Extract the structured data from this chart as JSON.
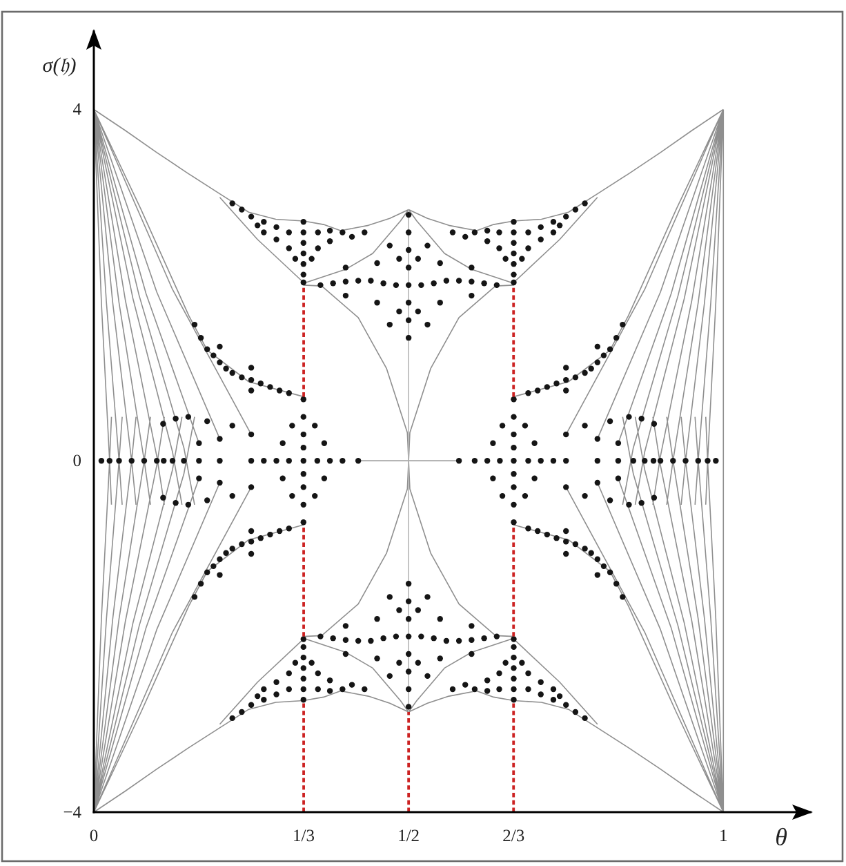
{
  "chart_data": {
    "type": "scatter",
    "xlabel": "θ",
    "ylabel": "σ(𝔥)",
    "xlim": [
      0,
      1.14
    ],
    "ylim": [
      -4,
      4.9
    ],
    "xticks": [
      0,
      {
        "value": 0.3333,
        "label": "1/3"
      },
      {
        "value": 0.5,
        "label": "1/2"
      },
      {
        "value": 0.6667,
        "label": "2/3"
      },
      1
    ],
    "yticks": [
      {
        "value": -4,
        "label": "−4"
      },
      0,
      4
    ],
    "series": [
      {
        "type": "line",
        "color": "#8f8f8f",
        "x": [
          0,
          0.05,
          0.1,
          0.15,
          0.2,
          0.246,
          0.289,
          0.333,
          0.365,
          0.392,
          0.436,
          0.47,
          0.5,
          null,
          0,
          0.075,
          0.151,
          0.18,
          0.246,
          0.333,
          null,
          0.2,
          0.26,
          0.333,
          null,
          0.333,
          0.362,
          0.42,
          0.465,
          0.498,
          0.5,
          null,
          0.333,
          0.4,
          0.443,
          0.487,
          0.5,
          null,
          0,
          0.125,
          0.25,
          null,
          0,
          0.1,
          0.2,
          null,
          0,
          0.083,
          0.167,
          null,
          0,
          0.072,
          0.143,
          0.16,
          null,
          0,
          0.062,
          0.125,
          0.14,
          null,
          0,
          0.05,
          0.1,
          0.112,
          null,
          0,
          0.04,
          0.08,
          0.09,
          null,
          0,
          0.03,
          0.06,
          0.067,
          null,
          0,
          0.02,
          0.04,
          0.045,
          null,
          0,
          0.012,
          0.025,
          0.028,
          null,
          1,
          0.95,
          0.9,
          0.85,
          0.8,
          0.754,
          0.711,
          0.667,
          0.635,
          0.608,
          0.564,
          0.53,
          0.5,
          null,
          1,
          0.925,
          0.849,
          0.82,
          0.754,
          0.667,
          null,
          0.8,
          0.74,
          0.667,
          null,
          0.667,
          0.638,
          0.58,
          0.535,
          0.502,
          0.5,
          null,
          0.667,
          0.6,
          0.557,
          0.513,
          0.5,
          null,
          1,
          0.875,
          0.75,
          null,
          1,
          0.9,
          0.8,
          null,
          1,
          0.917,
          0.833,
          null,
          1,
          0.928,
          0.857,
          0.84,
          null,
          1,
          0.938,
          0.875,
          0.86,
          null,
          1,
          0.95,
          0.9,
          0.888,
          null,
          1,
          0.96,
          0.92,
          0.91,
          null,
          1,
          0.97,
          0.94,
          0.933,
          null,
          1,
          0.98,
          0.96,
          0.955,
          null,
          1,
          0.988,
          0.975,
          0.972,
          null,
          0,
          0.05,
          0.1,
          0.15,
          0.2,
          0.246,
          0.289,
          0.333,
          0.365,
          0.392,
          0.436,
          0.47,
          0.5,
          null,
          0,
          0.075,
          0.151,
          0.18,
          0.246,
          0.333,
          null,
          0.2,
          0.26,
          0.333,
          null,
          0.333,
          0.362,
          0.42,
          0.465,
          0.498,
          0.5,
          null,
          0.333,
          0.4,
          0.443,
          0.487,
          0.5,
          null,
          0,
          0.125,
          0.25,
          null,
          0,
          0.1,
          0.2,
          null,
          0,
          0.083,
          0.167,
          null,
          0,
          0.072,
          0.143,
          0.16,
          null,
          0,
          0.062,
          0.125,
          0.14,
          null,
          0,
          0.05,
          0.1,
          0.112,
          null,
          0,
          0.04,
          0.08,
          0.09,
          null,
          0,
          0.03,
          0.06,
          0.067,
          null,
          0,
          0.02,
          0.04,
          0.045,
          null,
          0,
          0.012,
          0.025,
          0.028,
          null,
          1,
          0.95,
          0.9,
          0.85,
          0.8,
          0.754,
          0.711,
          0.667,
          0.635,
          0.608,
          0.564,
          0.53,
          0.5,
          null,
          1,
          0.925,
          0.849,
          0.82,
          0.754,
          0.667,
          null,
          0.8,
          0.74,
          0.667,
          null,
          0.667,
          0.638,
          0.58,
          0.535,
          0.502,
          0.5,
          null,
          0.667,
          0.6,
          0.557,
          0.513,
          0.5,
          null,
          1,
          0.875,
          0.75,
          null,
          1,
          0.9,
          0.8,
          null,
          1,
          0.917,
          0.833,
          null,
          1,
          0.928,
          0.857,
          0.84,
          null,
          1,
          0.938,
          0.875,
          0.86,
          null,
          1,
          0.95,
          0.9,
          0.888,
          null,
          1,
          0.96,
          0.92,
          0.91,
          null,
          1,
          0.97,
          0.94,
          0.933,
          null,
          1,
          0.98,
          0.96,
          0.955,
          null,
          1,
          0.988,
          0.975,
          0.972,
          null,
          0.42,
          0.58,
          null,
          1,
          1
        ],
        "values": [
          4,
          3.76,
          3.51,
          3.27,
          3.04,
          2.83,
          2.75,
          2.73,
          2.69,
          2.62,
          2.68,
          2.76,
          2.86,
          null,
          4,
          2.86,
          1.65,
          1.26,
          0.9,
          0.73,
          null,
          3.0,
          2.52,
          2.03,
          null,
          2.0,
          1.99,
          1.63,
          1.05,
          0.32,
          0,
          null,
          2.02,
          2.18,
          2.36,
          2.73,
          2.86,
          null,
          4,
          1.95,
          0.3,
          null,
          4,
          1.92,
          0.25,
          null,
          4,
          1.9,
          0.2,
          null,
          4,
          1.88,
          0.15,
          -0.5,
          null,
          4,
          1.85,
          0.1,
          -0.5,
          null,
          4,
          1.83,
          0.05,
          -0.5,
          null,
          4,
          1.8,
          0,
          -0.5,
          null,
          4,
          1.8,
          0,
          -0.5,
          null,
          4,
          1.8,
          0,
          -0.5,
          null,
          4,
          1.8,
          0,
          -0.5,
          null,
          4,
          3.76,
          3.51,
          3.27,
          3.04,
          2.83,
          2.75,
          2.73,
          2.69,
          2.62,
          2.68,
          2.76,
          2.86,
          null,
          4,
          2.86,
          1.65,
          1.26,
          0.9,
          0.73,
          null,
          3.0,
          2.52,
          2.03,
          null,
          2.0,
          1.99,
          1.63,
          1.05,
          0.32,
          0,
          null,
          2.02,
          2.18,
          2.36,
          2.73,
          2.86,
          null,
          4,
          1.95,
          0.3,
          null,
          4,
          1.92,
          0.25,
          null,
          4,
          1.9,
          0.2,
          null,
          4,
          1.88,
          0.15,
          -0.5,
          null,
          4,
          1.85,
          0.1,
          -0.5,
          null,
          4,
          1.83,
          0.05,
          -0.5,
          null,
          4,
          1.8,
          0,
          -0.5,
          null,
          4,
          1.8,
          0,
          -0.5,
          null,
          4,
          1.8,
          0,
          -0.5,
          null,
          4,
          1.8,
          0,
          -0.5,
          null,
          -4,
          -3.76,
          -3.51,
          -3.27,
          -3.04,
          -2.83,
          -2.75,
          -2.73,
          -2.69,
          -2.62,
          -2.68,
          -2.76,
          -2.86,
          null,
          -4,
          -2.86,
          -1.65,
          -1.26,
          -0.9,
          -0.73,
          null,
          -3.0,
          -2.52,
          -2.03,
          null,
          -2.0,
          -1.99,
          -1.63,
          -1.05,
          -0.32,
          0,
          null,
          -2.02,
          -2.18,
          -2.36,
          -2.73,
          -2.86,
          null,
          -4,
          -1.95,
          -0.3,
          null,
          -4,
          -1.92,
          -0.25,
          null,
          -4,
          -1.9,
          -0.2,
          null,
          -4,
          -1.88,
          -0.15,
          0.5,
          null,
          -4,
          -1.85,
          -0.1,
          0.5,
          null,
          -4,
          -1.83,
          -0.05,
          0.5,
          null,
          -4,
          -1.8,
          0,
          0.5,
          null,
          -4,
          -1.8,
          0,
          0.5,
          null,
          -4,
          -1.8,
          0,
          0.5,
          null,
          -4,
          -1.8,
          0,
          0.5,
          null,
          -4,
          -3.76,
          -3.51,
          -3.27,
          -3.04,
          -2.83,
          -2.75,
          -2.73,
          -2.69,
          -2.62,
          -2.68,
          -2.76,
          -2.86,
          null,
          -4,
          -2.86,
          -1.65,
          -1.26,
          -0.9,
          -0.73,
          null,
          -3.0,
          -2.52,
          -2.03,
          null,
          -2.0,
          -1.99,
          -1.63,
          -1.05,
          -0.32,
          0,
          null,
          -2.02,
          -2.18,
          -2.36,
          -2.73,
          -2.86,
          null,
          -4,
          -1.95,
          -0.3,
          null,
          -4,
          -1.92,
          -0.25,
          null,
          -4,
          -1.9,
          -0.2,
          null,
          -4,
          -1.88,
          -0.15,
          0.5,
          null,
          -4,
          -1.85,
          -0.1,
          0.5,
          null,
          -4,
          -1.83,
          -0.05,
          0.5,
          null,
          -4,
          -1.8,
          0,
          0.5,
          null,
          -4,
          -1.8,
          0,
          0.5,
          null,
          -4,
          -1.8,
          0,
          0.5,
          null,
          -4,
          -1.8,
          0,
          0.5,
          null,
          0,
          0,
          null,
          -4,
          4
        ]
      },
      {
        "type": "line",
        "color": "#b5b5b5",
        "x": [
          0.5,
          0.5
        ],
        "values": [
          -2.86,
          2.86
        ]
      },
      {
        "marker": "circle",
        "color": "#151515",
        "x": [
          0.333,
          0.333,
          0.333,
          0.333,
          0.333,
          0.333,
          0.333,
          0.31,
          0.29,
          0.27,
          0.25,
          0.235,
          0.22,
          0.31,
          0.29,
          0.27,
          0.26,
          0.356,
          0.375,
          0.395,
          0.43,
          0.356,
          0.375,
          0.41,
          0.32,
          0.346,
          0.16,
          0.17,
          0.18,
          0.19,
          0.2,
          0.2,
          0.21,
          0.22,
          0.235,
          0.25,
          0.25,
          0.25,
          0.265,
          0.28,
          0.295,
          0.31,
          0.22,
          0.18,
          0.15,
          0.13,
          0.11
        ],
        "values": [
          2.72,
          2.6,
          2.48,
          2.36,
          2.24,
          2.12,
          2.03,
          2.6,
          2.66,
          2.72,
          2.78,
          2.86,
          2.93,
          2.42,
          2.52,
          2.6,
          2.68,
          2.6,
          2.62,
          2.6,
          2.6,
          2.42,
          2.5,
          2.55,
          2.3,
          2.3,
          1.55,
          1.4,
          1.27,
          1.2,
          1.12,
          1.3,
          1.05,
          1.0,
          0.95,
          0.92,
          1.06,
          0.8,
          0.88,
          0.84,
          0.8,
          0.77,
          0.4,
          0.45,
          0.5,
          0.48,
          0.42
        ]
      },
      {
        "marker": "circle",
        "color": "#151515",
        "x": [
          0.667,
          0.667,
          0.667,
          0.667,
          0.667,
          0.667,
          0.667,
          0.69,
          0.71,
          0.73,
          0.75,
          0.765,
          0.78,
          0.69,
          0.71,
          0.73,
          0.74,
          0.644,
          0.625,
          0.605,
          0.57,
          0.644,
          0.625,
          0.59,
          0.68,
          0.654,
          0.84,
          0.83,
          0.82,
          0.81,
          0.8,
          0.8,
          0.79,
          0.78,
          0.765,
          0.75,
          0.75,
          0.75,
          0.735,
          0.72,
          0.705,
          0.69,
          0.78,
          0.82,
          0.85,
          0.87,
          0.89
        ],
        "values": [
          2.72,
          2.6,
          2.48,
          2.36,
          2.24,
          2.12,
          2.03,
          2.6,
          2.66,
          2.72,
          2.78,
          2.86,
          2.93,
          2.42,
          2.52,
          2.6,
          2.68,
          2.6,
          2.62,
          2.6,
          2.6,
          2.42,
          2.5,
          2.55,
          2.3,
          2.3,
          1.55,
          1.4,
          1.27,
          1.2,
          1.12,
          1.3,
          1.05,
          1.0,
          0.95,
          0.92,
          1.06,
          0.8,
          0.88,
          0.84,
          0.8,
          0.77,
          0.4,
          0.45,
          0.5,
          0.48,
          0.42
        ]
      },
      {
        "marker": "circle",
        "color": "#151515",
        "x": [
          0.333,
          0.333,
          0.333,
          0.333,
          0.333,
          0.333,
          0.333,
          0.31,
          0.29,
          0.27,
          0.25,
          0.235,
          0.22,
          0.31,
          0.29,
          0.27,
          0.26,
          0.356,
          0.375,
          0.395,
          0.43,
          0.356,
          0.375,
          0.41,
          0.32,
          0.346,
          0.16,
          0.17,
          0.18,
          0.19,
          0.2,
          0.2,
          0.21,
          0.22,
          0.235,
          0.25,
          0.25,
          0.25,
          0.265,
          0.28,
          0.295,
          0.31,
          0.22,
          0.18,
          0.15,
          0.13,
          0.11
        ],
        "values": [
          -2.72,
          -2.6,
          -2.48,
          -2.36,
          -2.24,
          -2.12,
          -2.03,
          -2.6,
          -2.66,
          -2.72,
          -2.78,
          -2.86,
          -2.93,
          -2.42,
          -2.52,
          -2.6,
          -2.68,
          -2.6,
          -2.62,
          -2.6,
          -2.6,
          -2.42,
          -2.5,
          -2.55,
          -2.3,
          -2.3,
          -1.55,
          -1.4,
          -1.27,
          -1.2,
          -1.12,
          -1.3,
          -1.05,
          -1.0,
          -0.95,
          -0.92,
          -1.06,
          -0.8,
          -0.88,
          -0.84,
          -0.8,
          -0.77,
          -0.4,
          -0.45,
          -0.5,
          -0.48,
          -0.42
        ]
      },
      {
        "marker": "circle",
        "color": "#151515",
        "x": [
          0.667,
          0.667,
          0.667,
          0.667,
          0.667,
          0.667,
          0.667,
          0.69,
          0.71,
          0.73,
          0.75,
          0.765,
          0.78,
          0.69,
          0.71,
          0.73,
          0.74,
          0.644,
          0.625,
          0.605,
          0.57,
          0.644,
          0.625,
          0.59,
          0.68,
          0.654,
          0.84,
          0.83,
          0.82,
          0.81,
          0.8,
          0.8,
          0.79,
          0.78,
          0.765,
          0.75,
          0.75,
          0.75,
          0.735,
          0.72,
          0.705,
          0.69,
          0.78,
          0.82,
          0.85,
          0.87,
          0.89
        ],
        "values": [
          -2.72,
          -2.6,
          -2.48,
          -2.36,
          -2.24,
          -2.12,
          -2.03,
          -2.6,
          -2.66,
          -2.72,
          -2.78,
          -2.86,
          -2.93,
          -2.42,
          -2.52,
          -2.6,
          -2.68,
          -2.6,
          -2.62,
          -2.6,
          -2.6,
          -2.42,
          -2.5,
          -2.55,
          -2.3,
          -2.3,
          -1.55,
          -1.4,
          -1.27,
          -1.2,
          -1.12,
          -1.3,
          -1.05,
          -1.0,
          -0.95,
          -0.92,
          -1.06,
          -0.8,
          -0.88,
          -0.84,
          -0.8,
          -0.77,
          -0.4,
          -0.45,
          -0.5,
          -0.48,
          -0.42
        ]
      },
      {
        "marker": "circle",
        "color": "#151515",
        "x": [
          0.5,
          0.5,
          0.5,
          0.5,
          0.5,
          0.5,
          0.5,
          0.5,
          0.48,
          0.46,
          0.44,
          0.42,
          0.4,
          0.38,
          0.36,
          0.52,
          0.54,
          0.56,
          0.58,
          0.6,
          0.62,
          0.64,
          0.485,
          0.47,
          0.485,
          0.47,
          0.45,
          0.45,
          0.4,
          0.4,
          0.515,
          0.53,
          0.515,
          0.53,
          0.55,
          0.55,
          0.6,
          0.6,
          0.5,
          0.5,
          0.5,
          0.5,
          0.5,
          0.5,
          0.5,
          0.5,
          0.48,
          0.46,
          0.44,
          0.42,
          0.4,
          0.38,
          0.36,
          0.52,
          0.54,
          0.56,
          0.58,
          0.6,
          0.62,
          0.64,
          0.485,
          0.47,
          0.485,
          0.47,
          0.45,
          0.45,
          0.4,
          0.4,
          0.515,
          0.53,
          0.515,
          0.53,
          0.55,
          0.55,
          0.6,
          0.6
        ],
        "values": [
          2.8,
          2.6,
          2.4,
          2.2,
          2.0,
          1.8,
          1.6,
          1.4,
          2.0,
          2.02,
          2.05,
          2.05,
          2.04,
          2.02,
          2.0,
          2.0,
          2.02,
          2.05,
          2.05,
          2.04,
          2.02,
          2.0,
          2.3,
          2.45,
          1.7,
          1.55,
          2.25,
          1.8,
          2.2,
          1.88,
          2.3,
          2.45,
          1.7,
          1.55,
          2.25,
          1.8,
          2.2,
          1.88,
          -2.8,
          -2.6,
          -2.4,
          -2.2,
          -2.0,
          -1.8,
          -1.6,
          -1.4,
          -2.0,
          -2.02,
          -2.05,
          -2.05,
          -2.04,
          -2.02,
          -2.0,
          -2.0,
          -2.02,
          -2.05,
          -2.05,
          -2.04,
          -2.02,
          -2.0,
          -2.3,
          -2.45,
          -1.7,
          -1.55,
          -2.25,
          -1.8,
          -2.2,
          -1.88,
          -2.3,
          -2.45,
          -1.7,
          -1.55,
          -2.25,
          -1.8,
          -2.2,
          -1.88
        ]
      },
      {
        "marker": "circle",
        "color": "#151515",
        "x": [
          0.333,
          0.333,
          0.333,
          0.333,
          0.333,
          0.333,
          0.333,
          0.333,
          0.333,
          0.27,
          0.29,
          0.31,
          0.355,
          0.375,
          0.395,
          0.42,
          0.3,
          0.3,
          0.366,
          0.366,
          0.315,
          0.315,
          0.351,
          0.351,
          0.25,
          0.25,
          0.25,
          0.2,
          0.2,
          0.2,
          0.167,
          0.167,
          0.167,
          0.143,
          0.125,
          0.111,
          0.1,
          0.08,
          0.06,
          0.04,
          0.025,
          0.012,
          0.667,
          0.667,
          0.667,
          0.667,
          0.667,
          0.667,
          0.667,
          0.667,
          0.667,
          0.73,
          0.71,
          0.69,
          0.645,
          0.625,
          0.605,
          0.58,
          0.7,
          0.7,
          0.634,
          0.634,
          0.685,
          0.685,
          0.649,
          0.649,
          0.75,
          0.75,
          0.75,
          0.8,
          0.8,
          0.8,
          0.833,
          0.833,
          0.833,
          0.857,
          0.875,
          0.889,
          0.9,
          0.92,
          0.94,
          0.96,
          0.975,
          0.988
        ],
        "values": [
          0.7,
          0.5,
          0.3,
          0.15,
          0,
          -0.15,
          -0.3,
          -0.5,
          -0.7,
          0,
          0,
          0,
          0,
          0,
          0,
          0,
          0.2,
          -0.2,
          0.2,
          -0.2,
          0.4,
          -0.4,
          0.4,
          -0.4,
          0,
          0.3,
          -0.3,
          0,
          0.25,
          -0.25,
          0,
          0.2,
          -0.2,
          0,
          0,
          0,
          0,
          0,
          0,
          0,
          0,
          0,
          0.7,
          0.5,
          0.3,
          0.15,
          0,
          -0.15,
          -0.3,
          -0.5,
          -0.7,
          0,
          0,
          0,
          0,
          0,
          0,
          0,
          0.2,
          -0.2,
          0.2,
          -0.2,
          0.4,
          -0.4,
          0.4,
          -0.4,
          0,
          0.3,
          -0.3,
          0,
          0.25,
          -0.25,
          0,
          0.2,
          -0.2,
          0,
          0,
          0,
          0,
          0,
          0,
          0,
          0,
          0
        ]
      },
      {
        "type": "line",
        "line_style": "dashed",
        "color": "#cc2222",
        "x": [
          0.3333,
          0.3333
        ],
        "values": [
          -4,
          -2.73
        ]
      },
      {
        "type": "line",
        "line_style": "dashed",
        "color": "#cc2222",
        "x": [
          0.3333,
          0.3333
        ],
        "values": [
          -2.0,
          -0.73
        ]
      },
      {
        "type": "line",
        "line_style": "dashed",
        "color": "#cc2222",
        "x": [
          0.3333,
          0.3333
        ],
        "values": [
          0.73,
          2.0
        ]
      },
      {
        "type": "line",
        "line_style": "dashed",
        "color": "#cc2222",
        "x": [
          0.5,
          0.5
        ],
        "values": [
          -4,
          -2.86
        ]
      },
      {
        "type": "line",
        "line_style": "dashed",
        "color": "#cc2222",
        "x": [
          0.6667,
          0.6667
        ],
        "values": [
          -4,
          -2.73
        ]
      },
      {
        "type": "line",
        "line_style": "dashed",
        "color": "#cc2222",
        "x": [
          0.6667,
          0.6667
        ],
        "values": [
          -2.0,
          -0.73
        ]
      },
      {
        "type": "line",
        "line_style": "dashed",
        "color": "#cc2222",
        "x": [
          0.6667,
          0.6667
        ],
        "values": [
          0.73,
          2.0
        ]
      }
    ]
  }
}
